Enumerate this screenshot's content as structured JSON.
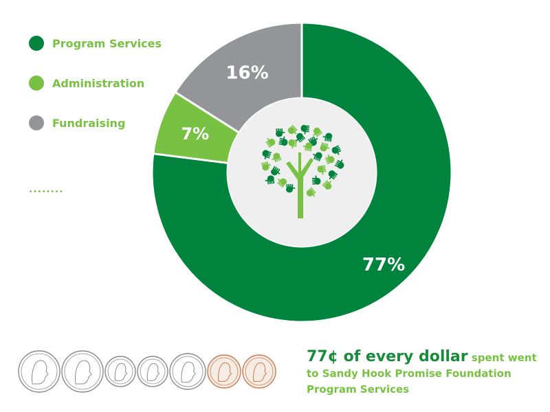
{
  "chart_data": {
    "type": "pie",
    "slices": [
      {
        "label": "Program Services",
        "value": 77,
        "display": "77%",
        "color": "#00843d"
      },
      {
        "label": "Administration",
        "value": 7,
        "display": "7%",
        "color": "#78c143"
      },
      {
        "label": "Fundraising",
        "value": 16,
        "display": "16%",
        "color": "#939598"
      }
    ],
    "donut": true,
    "legend_position": "top-left"
  },
  "legend_more": "........",
  "caption": {
    "amount": "77¢ of every dollar",
    "text": "spent went to Sandy Hook Promise Foundation Program Services"
  },
  "colors": {
    "center": "#efefef",
    "tree_trunk": "#78c143",
    "hand_dark": "#00843d",
    "hand_light": "#78c143",
    "coin_silver": "#8a8a8a",
    "coin_copper": "#c47a4f"
  },
  "coins": [
    "quarter",
    "quarter",
    "dime",
    "dime",
    "nickel",
    "penny",
    "penny"
  ]
}
